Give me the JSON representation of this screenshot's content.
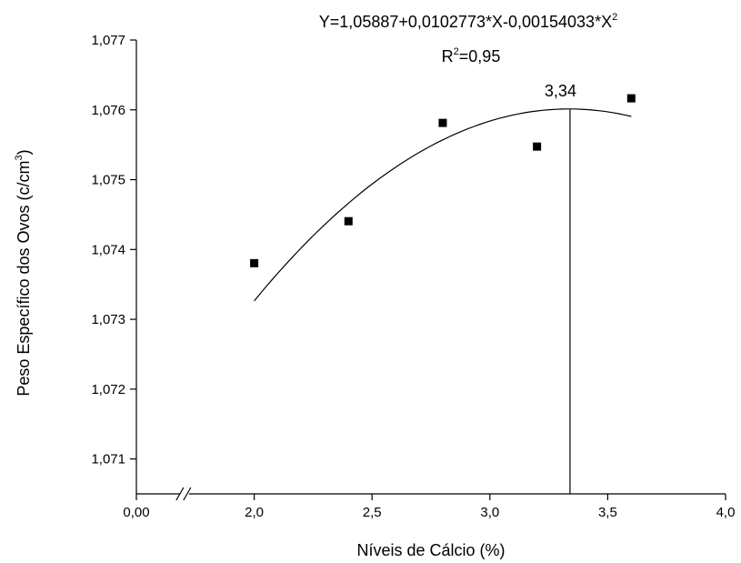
{
  "chart_data": {
    "type": "scatter",
    "title_parts": [
      "Y=1,05887+0,0102773*X-0,00154033*X",
      "2"
    ],
    "subtitle_parts": [
      "R",
      "2",
      "=0,95"
    ],
    "x_label": "Níveis de Cálcio (%)",
    "y_label_parts": [
      "Peso Específico dos Ovos (c/cm",
      "3",
      ")"
    ],
    "x": [
      2.0,
      2.4,
      2.8,
      3.2,
      3.6
    ],
    "values": [
      1.073804,
      1.074405,
      1.075813,
      1.075474,
      1.076165
    ],
    "color": "#000000",
    "fit": {
      "coefficients": [
        1.05887,
        0.0102773,
        -0.00154033
      ],
      "xrange": [
        2.0,
        3.6
      ]
    },
    "vline": {
      "value": 3.34,
      "label": "3,34"
    },
    "xlim": [
      0,
      4.0
    ],
    "xbreak": [
      0.2,
      1.7
    ],
    "ylim": [
      1.0705,
      1.077
    ],
    "xticks": [
      {
        "value": 0,
        "label": "0,00"
      },
      {
        "value": 2.0,
        "label": "2,0"
      },
      {
        "value": 2.5,
        "label": "2,5"
      },
      {
        "value": 3.0,
        "label": "3,0"
      },
      {
        "value": 3.5,
        "label": "3,5"
      },
      {
        "value": 4.0,
        "label": "4,0"
      }
    ],
    "yticks": [
      {
        "value": 1.071,
        "label": "1,071"
      },
      {
        "value": 1.072,
        "label": "1,072"
      },
      {
        "value": 1.073,
        "label": "1,073"
      },
      {
        "value": 1.074,
        "label": "1,074"
      },
      {
        "value": 1.075,
        "label": "1,075"
      },
      {
        "value": 1.076,
        "label": "1,076"
      },
      {
        "value": 1.077,
        "label": "1,077"
      }
    ]
  }
}
